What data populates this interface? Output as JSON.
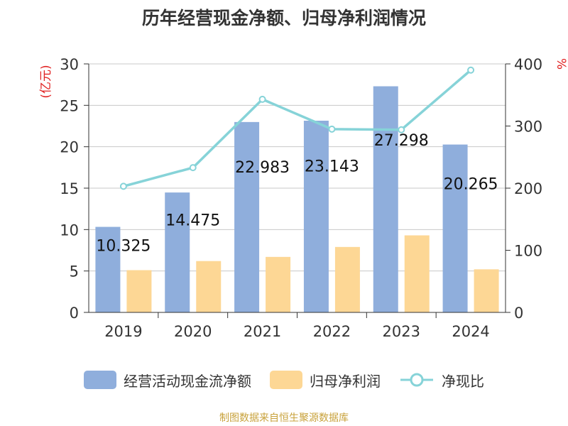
{
  "title": "历年经营现金净额、归母净利润情况",
  "source": "制图数据来自恒生聚源数据库",
  "colors": {
    "bar_cash": "#8faedc",
    "bar_profit": "#fdd795",
    "line_ratio": "#86d3d8",
    "unit_label": "#e02020",
    "axis": "#333333",
    "grid": "#c8c8c8"
  },
  "chart_data": {
    "type": "bar",
    "title": "历年经营现金净额、归母净利润情况",
    "categories": [
      "2019",
      "2020",
      "2021",
      "2022",
      "2023",
      "2024"
    ],
    "ylabel_left": "(亿元)",
    "ylabel_right": "%",
    "ylim_left": [
      0,
      30
    ],
    "ylim_right": [
      0,
      400
    ],
    "yticks_left": [
      "0",
      "5",
      "10",
      "15",
      "20",
      "25",
      "30"
    ],
    "yticks_right": [
      "0",
      "100",
      "200",
      "300",
      "400"
    ],
    "grid": true,
    "legend_position": "bottom",
    "series": [
      {
        "name": "经营活动现金流净额",
        "type": "bar",
        "axis": "left",
        "values": [
          10.325,
          14.475,
          22.983,
          23.143,
          27.298,
          20.265
        ],
        "labels": [
          "10.325",
          "14.475",
          "22.983",
          "23.143",
          "27.298",
          "20.265"
        ]
      },
      {
        "name": "归母净利润",
        "type": "bar",
        "axis": "left",
        "values": [
          5.1,
          6.2,
          6.7,
          7.9,
          9.3,
          5.2
        ]
      },
      {
        "name": "净现比",
        "type": "line",
        "axis": "right",
        "values": [
          203,
          233,
          343,
          295,
          294,
          390
        ]
      }
    ]
  }
}
